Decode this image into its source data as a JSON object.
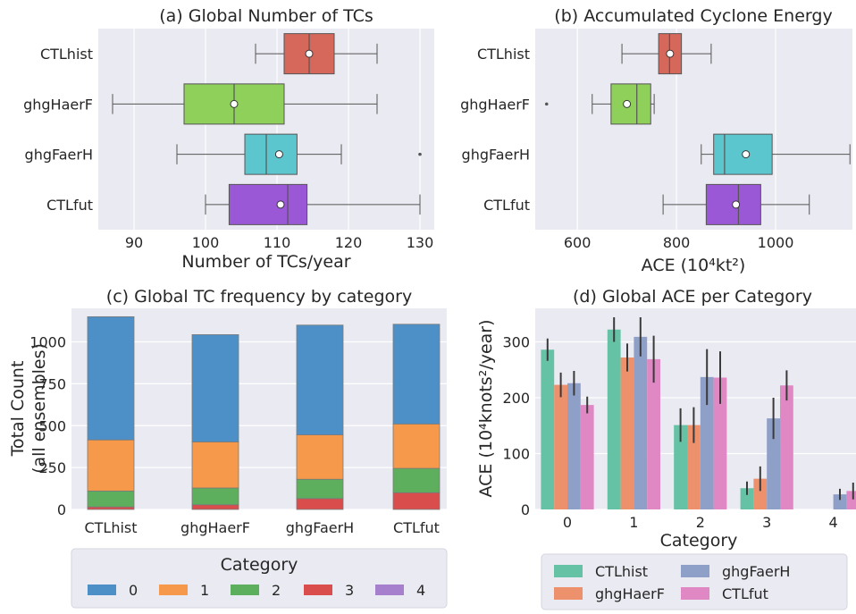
{
  "colors": {
    "axes_bg": "#eaeaf2",
    "grid": "#ffffff",
    "box_CTLhist": "#d6675b",
    "box_ghgHaerF": "#8fd05a",
    "box_ghgFaerH": "#5cc6cf",
    "box_CTLfut": "#9a58d6",
    "cat_0": "#4d90c8",
    "cat_1": "#f6994a",
    "cat_2": "#5daf5d",
    "cat_3": "#d94d4d",
    "cat_4": "#a680cd",
    "bar_CTLhist": "#66c2a5",
    "bar_ghgHaerF": "#ec916c",
    "bar_ghgFaerH": "#8fa0c8",
    "bar_CTLfut": "#e088c4"
  },
  "chart_data": [
    {
      "panel": "a",
      "type": "box",
      "title": "(a) Global Number of TCs",
      "xlabel": "Number of TCs/year",
      "xlim": [
        85,
        132
      ],
      "xticks": [
        90,
        100,
        110,
        120,
        130
      ],
      "categories": [
        "CTLhist",
        "ghgHaerF",
        "ghgFaerH",
        "CTLfut"
      ],
      "boxes": [
        {
          "name": "CTLhist",
          "whislo": 107,
          "q1": 111,
          "med": 114.5,
          "q3": 118,
          "whishi": 124,
          "mean": 114.5,
          "fliers": []
        },
        {
          "name": "ghgHaerF",
          "whislo": 87,
          "q1": 97,
          "med": 104,
          "q3": 111,
          "whishi": 124,
          "mean": 104,
          "fliers": []
        },
        {
          "name": "ghgFaerH",
          "whislo": 96,
          "q1": 105.5,
          "med": 108.5,
          "q3": 112.8,
          "whishi": 119,
          "mean": 110.3,
          "fliers": [
            130
          ]
        },
        {
          "name": "CTLfut",
          "whislo": 100,
          "q1": 103.3,
          "med": 111.5,
          "q3": 114.2,
          "whishi": 130,
          "mean": 110.5,
          "fliers": []
        }
      ]
    },
    {
      "panel": "b",
      "type": "box",
      "title": "(b) Accumulated Cyclone Energy",
      "xlabel": "ACE (10⁴kt²)",
      "xlim": [
        515,
        1155
      ],
      "xticks": [
        600,
        800,
        1000
      ],
      "categories": [
        "CTLhist",
        "ghgHaerF",
        "ghgFaerH",
        "CTLfut"
      ],
      "boxes": [
        {
          "name": "CTLhist",
          "whislo": 690,
          "q1": 764,
          "med": 786,
          "q3": 810,
          "whishi": 870,
          "mean": 787,
          "fliers": []
        },
        {
          "name": "ghgHaerF",
          "whislo": 630,
          "q1": 668,
          "med": 720,
          "q3": 748,
          "whishi": 755,
          "mean": 700,
          "fliers": [
            538
          ]
        },
        {
          "name": "ghgFaerH",
          "whislo": 850,
          "q1": 875,
          "med": 897,
          "q3": 993,
          "whishi": 1150,
          "mean": 940,
          "fliers": []
        },
        {
          "name": "CTLfut",
          "whislo": 773,
          "q1": 860,
          "med": 925,
          "q3": 970,
          "whishi": 1068,
          "mean": 920,
          "fliers": []
        }
      ]
    },
    {
      "panel": "c",
      "type": "bar",
      "stacked": true,
      "title": "(c) Global TC frequency by category",
      "ylabel_line1": "Total Count",
      "ylabel_line2": "(all ensembles)",
      "ylim": [
        0,
        1200
      ],
      "yticks": [
        0,
        250,
        500,
        750,
        1000
      ],
      "categories": [
        "CTLhist",
        "ghgHaerF",
        "ghgFaerH",
        "CTLfut"
      ],
      "legend_title": "Category",
      "legend_placement": "below",
      "series": [
        {
          "name": "0",
          "values": [
            735,
            640,
            655,
            595
          ]
        },
        {
          "name": "1",
          "values": [
            305,
            275,
            265,
            265
          ]
        },
        {
          "name": "2",
          "values": [
            95,
            100,
            115,
            145
          ]
        },
        {
          "name": "3",
          "values": [
            15,
            28,
            65,
            100
          ]
        },
        {
          "name": "4",
          "values": [
            0,
            0,
            0,
            0
          ]
        }
      ]
    },
    {
      "panel": "d",
      "type": "bar",
      "title": "(d) Global ACE per Category",
      "xlabel": "Category",
      "ylabel": "ACE (10⁴knots²/year)",
      "ylim": [
        0,
        360
      ],
      "yticks": [
        0,
        100,
        200,
        300
      ],
      "categories": [
        "0",
        "1",
        "2",
        "3",
        "4"
      ],
      "legend_placement": "below",
      "series": [
        {
          "name": "CTLhist",
          "values": [
            286,
            322,
            151,
            38,
            0
          ],
          "err": [
            20,
            22,
            30,
            12,
            0
          ]
        },
        {
          "name": "ghgHaerF",
          "values": [
            223,
            272,
            151,
            55,
            0
          ],
          "err": [
            22,
            25,
            32,
            22,
            0
          ]
        },
        {
          "name": "ghgFaerH",
          "values": [
            226,
            309,
            237,
            163,
            27
          ],
          "err": [
            22,
            35,
            50,
            37,
            10
          ]
        },
        {
          "name": "CTLfut",
          "values": [
            187,
            269,
            236,
            222,
            33
          ],
          "err": [
            15,
            42,
            47,
            27,
            15
          ]
        }
      ]
    }
  ]
}
